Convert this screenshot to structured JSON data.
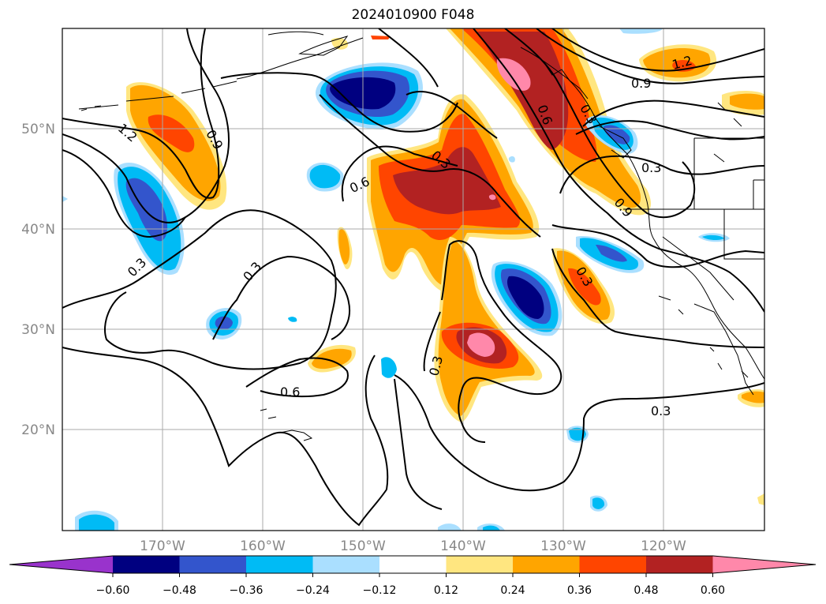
{
  "title": "2024010900 F048",
  "map": {
    "lon_labels": [
      "170°W",
      "160°W",
      "150°W",
      "140°W",
      "130°W",
      "120°W"
    ],
    "lat_labels": [
      "50°N",
      "40°N",
      "30°N",
      "20°N"
    ],
    "contour_labels": [
      "1.2",
      "0.9",
      "0.6",
      "0.3",
      "0.3",
      "0.6",
      "0.3",
      "0.3",
      "0.6",
      "0.3",
      "1.2",
      "0.9",
      "0.3",
      "0.9",
      "0.3",
      "0.3"
    ]
  },
  "colorbar": {
    "ticks": [
      "−0.60",
      "−0.48",
      "−0.36",
      "−0.24",
      "−0.12",
      "0.12",
      "0.24",
      "0.36",
      "0.48",
      "0.60"
    ],
    "colors": [
      "#9933cc",
      "#000080",
      "#3355cc",
      "#00bbf5",
      "#aadfff",
      "#ffffff",
      "#ffe680",
      "#ffa500",
      "#ff4500",
      "#b22222",
      "#ff88aa"
    ]
  }
}
